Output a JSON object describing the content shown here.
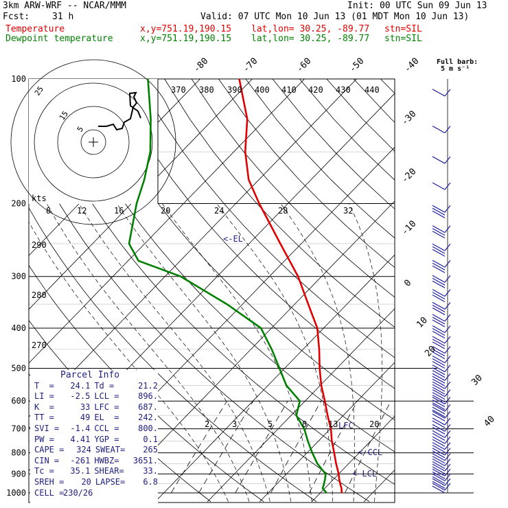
{
  "header": {
    "model": "3km ARW-WRF -- NCAR/MMM",
    "init": "Init: 00 UTC Sun 09 Jun 13",
    "fcst_label": "Fcst:",
    "fcst_value": "31 h",
    "valid": "Valid: 07 UTC Mon 10 Jun 13 (01 MDT Mon 10 Jun 13)",
    "line_temp": {
      "name": "Temperature",
      "xy": "x,y=751.19,190.15",
      "latlon": "lat,lon= 30.25, -89.77",
      "stn": "stn=SIL"
    },
    "line_dew": {
      "name": "Dewpoint temperature",
      "xy": "x,y=751.19,190.15",
      "latlon": "lat,lon= 30.25, -89.77",
      "stn": "stn=SIL"
    }
  },
  "barb_legend": {
    "title": "Full barb:",
    "value": "5 m s⁻¹"
  },
  "colors": {
    "temperature": "#e00000",
    "dewpoint": "#008000",
    "annotation": "#202080",
    "grid": "#000000"
  },
  "chart_data": {
    "type": "line",
    "title": "",
    "y_axis": {
      "label": "",
      "scale": "log",
      "ylim": [
        1000,
        100
      ],
      "ticks": [
        "100",
        "200",
        "300",
        "400",
        "500",
        "600",
        "700",
        "800",
        "900",
        "1000"
      ]
    },
    "isotherm_labels_top": [
      "-80",
      "-70",
      "-60",
      "-50",
      "-40"
    ],
    "isotherm_labels_right": [
      "-30",
      "-20",
      "-10",
      "0",
      "10",
      "20",
      "30",
      "40"
    ],
    "theta_e_labels": [
      "370",
      "380",
      "390",
      "400",
      "410",
      "420",
      "430",
      "440"
    ],
    "theta_labels": [
      "290",
      "280",
      "270"
    ],
    "mixing_ratio_labels": [
      "2",
      "3",
      "5",
      "8",
      "13",
      "20"
    ],
    "hodograph": {
      "units_label": "kts",
      "ring_labels_top": [
        "8",
        "12",
        "16",
        "20",
        "24",
        "28",
        "32"
      ],
      "ring_labels_circle": [
        "5",
        "15",
        "25"
      ]
    },
    "series": [
      {
        "name": "Temperature",
        "color": "#e00000",
        "points": [
          [
            1000,
            24.1
          ],
          [
            975,
            23.2
          ],
          [
            950,
            22.1
          ],
          [
            925,
            21.0
          ],
          [
            900,
            20.0
          ],
          [
            850,
            17.6
          ],
          [
            800,
            15.2
          ],
          [
            750,
            12.6
          ],
          [
            700,
            10.1
          ],
          [
            650,
            7.0
          ],
          [
            600,
            3.8
          ],
          [
            550,
            0.2
          ],
          [
            500,
            -3.3
          ],
          [
            450,
            -6.9
          ],
          [
            400,
            -11.2
          ],
          [
            350,
            -17.4
          ],
          [
            300,
            -24.5
          ],
          [
            250,
            -34.0
          ],
          [
            200,
            -45.5
          ],
          [
            175,
            -52.0
          ],
          [
            150,
            -57.8
          ],
          [
            125,
            -63.5
          ],
          [
            100,
            -72.5
          ]
        ]
      },
      {
        "name": "Dewpoint temperature",
        "color": "#008000",
        "points": [
          [
            1000,
            21.2
          ],
          [
            975,
            19.6
          ],
          [
            950,
            19.0
          ],
          [
            925,
            18.3
          ],
          [
            900,
            17.5
          ],
          [
            850,
            14.0
          ],
          [
            800,
            11.0
          ],
          [
            750,
            8.0
          ],
          [
            700,
            5.0
          ],
          [
            650,
            1.0
          ],
          [
            600,
            -1.0
          ],
          [
            550,
            -6.5
          ],
          [
            500,
            -11.0
          ],
          [
            450,
            -16.0
          ],
          [
            400,
            -22.0
          ],
          [
            350,
            -33.0
          ],
          [
            300,
            -47.0
          ],
          [
            275,
            -58.0
          ],
          [
            250,
            -63.0
          ],
          [
            200,
            -69.0
          ],
          [
            175,
            -72.0
          ],
          [
            150,
            -76.0
          ],
          [
            125,
            -82.0
          ],
          [
            100,
            -90.0
          ]
        ]
      }
    ],
    "annotations": [
      {
        "text": "<-EL",
        "p": 242
      },
      {
        "text": "LFC",
        "p": 687
      },
      {
        "text": "<-CCL",
        "p": 800
      },
      {
        "text": "<-LCL",
        "p": 896
      }
    ],
    "parcel_info": {
      "title": "Parcel Info",
      "rows": [
        [
          "T  =",
          "24.1",
          "Td =",
          "21.2"
        ],
        [
          "LI =",
          "-2.5",
          "LCL =",
          "896."
        ],
        [
          "K  =",
          "33",
          "LFC =",
          "687."
        ],
        [
          "TT =",
          "49",
          "EL  =",
          "242."
        ],
        [
          "SVI =",
          "-1.4",
          "CCL =",
          "800."
        ],
        [
          "PW =",
          "4.41",
          "YGP =",
          "0.1"
        ],
        [
          "CAPE =",
          "324",
          "SWEAT=",
          "265"
        ],
        [
          "CIN =",
          "-261",
          "HWBZ=",
          "3651."
        ],
        [
          "Tc =",
          "35.1",
          "SHEAR=",
          "33."
        ],
        [
          "SREH =",
          "20",
          "LAPSE=",
          "6.8"
        ],
        [
          "CELL =",
          "230/26",
          "",
          ""
        ]
      ]
    }
  }
}
